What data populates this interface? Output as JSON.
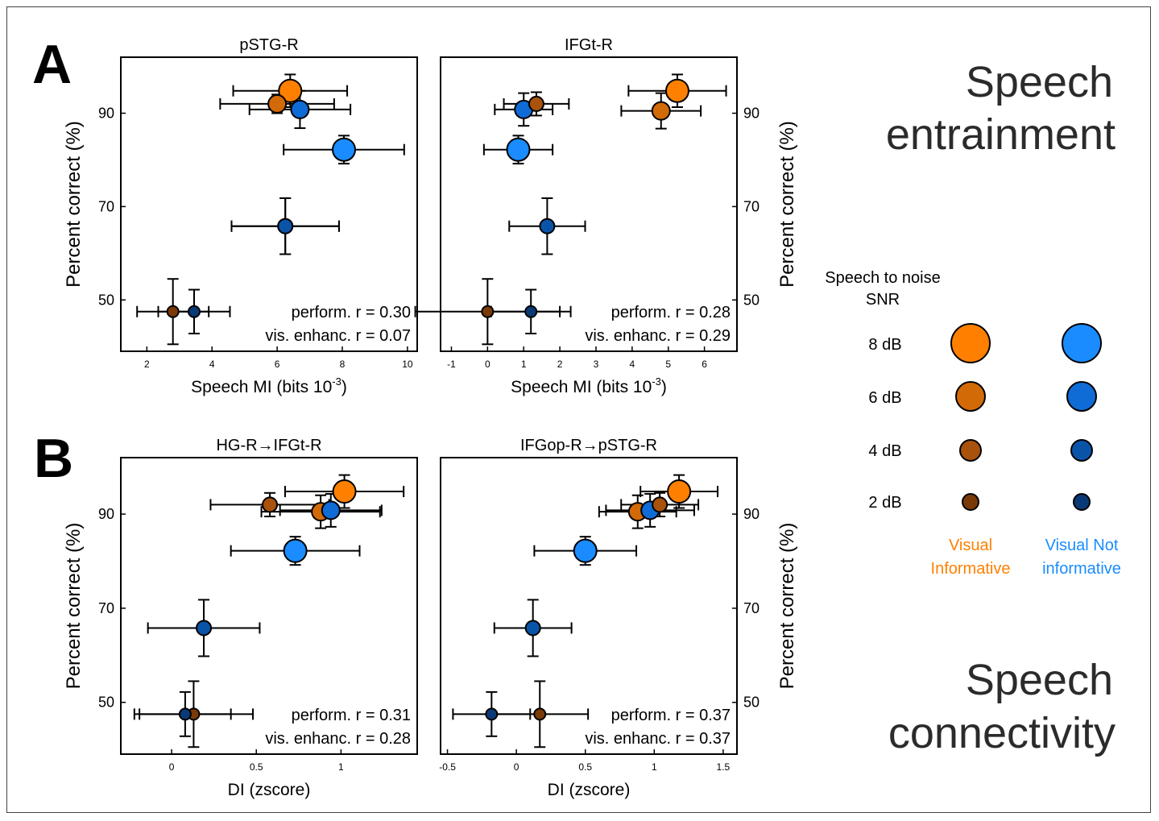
{
  "panel_letters": [
    "A",
    "B"
  ],
  "side_labels": {
    "top": [
      "Speech",
      "entrainment"
    ],
    "bottom": [
      "Speech",
      "connectivity"
    ]
  },
  "legend": {
    "title_lines": [
      "Speech to noise",
      "SNR"
    ],
    "levels": [
      "8 dB",
      "6 dB",
      "4 dB",
      "2 dB"
    ],
    "col1_lines": [
      "Visual",
      "Informative"
    ],
    "col2_lines": [
      "Visual Not",
      "informative"
    ],
    "col1_colors": [
      "#FF8000",
      "#D36A08",
      "#A8520C",
      "#7A3A08"
    ],
    "col2_colors": [
      "#1A8CFF",
      "#0F6BD6",
      "#0A54A8",
      "#0A3A75"
    ],
    "col1_label_color": "#FF8000",
    "col2_label_color": "#1A8CFF"
  },
  "chart_data": [
    {
      "type": "scatter",
      "title": "pSTG-R",
      "xlabel": "Speech MI (bits 10",
      "xlabel_sup": "-3",
      "xlabel_end": ")",
      "ylabel": "Percent correct (%)",
      "xlim": [
        1.2,
        10.3
      ],
      "ylim": [
        39,
        102
      ],
      "xticks": [
        2,
        4,
        6,
        8,
        10
      ],
      "yticks": [
        50,
        70,
        90
      ],
      "annotations": [
        "perform. r = 0.30",
        "vis. enhanc. r = 0.07"
      ],
      "series": [
        {
          "name": "Visual Informative",
          "snr": [
            8,
            6,
            4,
            2
          ],
          "x": [
            6.4,
            6.0,
            6.25,
            2.8
          ],
          "y": [
            94.8,
            92.0,
            65.8,
            47.5
          ],
          "xerr": [
            1.75,
            1.75,
            1.65,
            1.1
          ],
          "yerr": [
            3.5,
            2.0,
            6.0,
            7.0
          ]
        },
        {
          "name": "Visual Not informative",
          "snr": [
            8,
            6,
            4,
            2
          ],
          "x": [
            8.05,
            6.7,
            6.25,
            3.45
          ],
          "y": [
            82.2,
            90.8,
            65.8,
            47.5
          ],
          "xerr": [
            1.85,
            1.55,
            1.65,
            1.1
          ],
          "yerr": [
            3.0,
            4.0,
            6.0,
            4.7
          ]
        }
      ]
    },
    {
      "type": "scatter",
      "title": "IFGt-R",
      "xlabel": "Speech MI (bits 10",
      "xlabel_sup": "-3",
      "xlabel_end": ")",
      "ylabel": "Percent correct (%)",
      "xlim": [
        -1.3,
        6.9
      ],
      "ylim": [
        39,
        102
      ],
      "xticks": [
        -1,
        0,
        1,
        2,
        3,
        4,
        5,
        6
      ],
      "yticks": [
        50,
        70,
        90
      ],
      "annotations": [
        "perform. r = 0.28",
        "vis. enhanc. r = 0.29"
      ],
      "series": [
        {
          "name": "Visual Informative",
          "snr": [
            8,
            6,
            4,
            2
          ],
          "x": [
            5.25,
            4.8,
            1.35,
            0.0
          ],
          "y": [
            94.8,
            90.5,
            92.0,
            47.5
          ],
          "xerr": [
            1.35,
            1.1,
            0.9,
            2.0
          ],
          "yerr": [
            3.5,
            3.8,
            2.5,
            7.0
          ]
        },
        {
          "name": "Visual Not informative",
          "snr": [
            8,
            6,
            4,
            2
          ],
          "x": [
            0.85,
            1.0,
            1.65,
            1.2
          ],
          "y": [
            82.2,
            90.8,
            65.8,
            47.5
          ],
          "xerr": [
            0.95,
            0.8,
            1.05,
            1.1
          ],
          "yerr": [
            3.0,
            3.5,
            6.0,
            4.7
          ]
        }
      ]
    },
    {
      "type": "scatter",
      "title": "HG-R→IFGt-R",
      "xlabel": "DI (zscore)",
      "xlabel_sup": "",
      "xlabel_end": "",
      "ylabel": "Percent correct (%)",
      "xlim": [
        -0.3,
        1.45
      ],
      "ylim": [
        39,
        102
      ],
      "xticks": [
        0,
        0.5,
        1
      ],
      "yticks": [
        50,
        70,
        90
      ],
      "annotations": [
        "perform. r = 0.31",
        "vis. enhanc. r = 0.28"
      ],
      "series": [
        {
          "name": "Visual Informative",
          "snr": [
            8,
            6,
            4,
            2
          ],
          "x": [
            1.02,
            0.88,
            0.58,
            0.13
          ],
          "y": [
            94.8,
            90.5,
            92.0,
            47.5
          ],
          "xerr": [
            0.35,
            0.35,
            0.35,
            0.35
          ],
          "yerr": [
            3.5,
            3.5,
            2.5,
            7.0
          ]
        },
        {
          "name": "Visual Not informative",
          "snr": [
            8,
            6,
            4,
            2
          ],
          "x": [
            0.73,
            0.94,
            0.19,
            0.08
          ],
          "y": [
            82.2,
            90.8,
            65.8,
            47.5
          ],
          "xerr": [
            0.38,
            0.3,
            0.33,
            0.27
          ],
          "yerr": [
            3.0,
            3.5,
            6.0,
            4.7
          ]
        }
      ]
    },
    {
      "type": "scatter",
      "title": "IFGop-R→pSTG-R",
      "xlabel": "DI (zscore)",
      "xlabel_sup": "",
      "xlabel_end": "",
      "ylabel": "Percent correct (%)",
      "xlim": [
        -0.55,
        1.6
      ],
      "ylim": [
        39,
        102
      ],
      "xticks": [
        -0.5,
        0,
        0.5,
        1,
        1.5
      ],
      "yticks": [
        50,
        70,
        90
      ],
      "annotations": [
        "perform. r = 0.37",
        "vis. enhanc. r = 0.37"
      ],
      "series": [
        {
          "name": "Visual Informative",
          "snr": [
            8,
            6,
            4,
            2
          ],
          "x": [
            1.18,
            0.88,
            1.04,
            0.17
          ],
          "y": [
            94.8,
            90.5,
            92.0,
            47.5
          ],
          "xerr": [
            0.28,
            0.28,
            0.28,
            0.35
          ],
          "yerr": [
            3.5,
            3.5,
            2.5,
            7.0
          ]
        },
        {
          "name": "Visual Not informative",
          "snr": [
            8,
            6,
            4,
            2
          ],
          "x": [
            0.5,
            0.97,
            0.12,
            -0.18
          ],
          "y": [
            82.2,
            90.8,
            65.8,
            47.5
          ],
          "xerr": [
            0.37,
            0.32,
            0.28,
            0.28
          ],
          "yerr": [
            3.0,
            3.5,
            6.0,
            4.7
          ]
        }
      ]
    }
  ]
}
